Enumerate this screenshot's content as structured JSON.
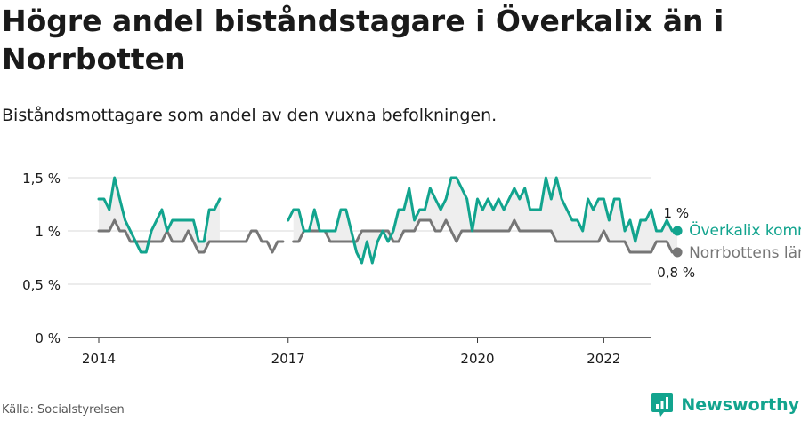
{
  "title": "Högre andel biståndstagare i Överkalix än i Norrbotten",
  "subtitle": "Biståndsmottagare som andel av den vuxna befolkningen.",
  "source": "Källa: Socialstyrelsen",
  "brand": "Newsworthy",
  "colors": {
    "teal": "#12a48e",
    "gray": "#767676",
    "fill": "#eeeeee",
    "grid": "#d9d9d9",
    "axis": "#333333"
  },
  "chart_data": {
    "type": "line",
    "x_start": "2014-01",
    "x_step": "1 month",
    "ylim": [
      0,
      1.5
    ],
    "y_ticks": [
      0,
      0.5,
      1,
      1.5
    ],
    "y_tick_labels": [
      "0 %",
      "0,5 %",
      "1 %",
      "1,5 %"
    ],
    "x_ticks": [
      "2014",
      "2017",
      "2020",
      "2022"
    ],
    "grid": "horizontal",
    "series": [
      {
        "name": "Överkalix kommun",
        "end_label": "1 %",
        "values": [
          1.3,
          1.3,
          1.2,
          1.5,
          1.3,
          1.1,
          1.0,
          0.9,
          0.8,
          0.8,
          1.0,
          1.1,
          1.2,
          1.0,
          1.1,
          1.1,
          1.1,
          1.1,
          1.1,
          0.9,
          0.9,
          1.2,
          1.2,
          1.3,
          null,
          null,
          null,
          null,
          null,
          null,
          null,
          null,
          null,
          null,
          null,
          null,
          1.1,
          1.2,
          1.2,
          1.0,
          1.0,
          1.2,
          1.0,
          1.0,
          1.0,
          1.0,
          1.2,
          1.2,
          1.0,
          0.8,
          0.7,
          0.9,
          0.7,
          0.9,
          1.0,
          0.9,
          1.0,
          1.2,
          1.2,
          1.4,
          1.1,
          1.2,
          1.2,
          1.4,
          1.3,
          1.2,
          1.3,
          1.5,
          1.5,
          1.4,
          1.3,
          1.0,
          1.3,
          1.2,
          1.3,
          1.2,
          1.3,
          1.2,
          1.3,
          1.4,
          1.3,
          1.4,
          1.2,
          1.2,
          1.2,
          1.5,
          1.3,
          1.5,
          1.3,
          1.2,
          1.1,
          1.1,
          1.0,
          1.3,
          1.2,
          1.3,
          1.3,
          1.1,
          1.3,
          1.3,
          1.0,
          1.1,
          0.9,
          1.1,
          1.1,
          1.2,
          1.0,
          1.0,
          1.1,
          1.0,
          1.0
        ]
      },
      {
        "name": "Norrbottens län",
        "end_label": "0,8 %",
        "values": [
          1.0,
          1.0,
          1.0,
          1.1,
          1.0,
          1.0,
          0.9,
          0.9,
          0.9,
          0.9,
          0.9,
          0.9,
          0.9,
          1.0,
          0.9,
          0.9,
          0.9,
          1.0,
          0.9,
          0.8,
          0.8,
          0.9,
          0.9,
          0.9,
          0.9,
          0.9,
          0.9,
          0.9,
          0.9,
          1.0,
          1.0,
          0.9,
          0.9,
          0.8,
          0.9,
          0.9,
          null,
          0.9,
          0.9,
          1.0,
          1.0,
          1.0,
          1.0,
          1.0,
          0.9,
          0.9,
          0.9,
          0.9,
          0.9,
          0.9,
          1.0,
          1.0,
          1.0,
          1.0,
          1.0,
          1.0,
          0.9,
          0.9,
          1.0,
          1.0,
          1.0,
          1.1,
          1.1,
          1.1,
          1.0,
          1.0,
          1.1,
          1.0,
          0.9,
          1.0,
          1.0,
          1.0,
          1.0,
          1.0,
          1.0,
          1.0,
          1.0,
          1.0,
          1.0,
          1.1,
          1.0,
          1.0,
          1.0,
          1.0,
          1.0,
          1.0,
          1.0,
          0.9,
          0.9,
          0.9,
          0.9,
          0.9,
          0.9,
          0.9,
          0.9,
          0.9,
          1.0,
          0.9,
          0.9,
          0.9,
          0.9,
          0.8,
          0.8,
          0.8,
          0.8,
          0.8,
          0.9,
          0.9,
          0.9,
          0.8,
          0.8
        ]
      }
    ]
  }
}
